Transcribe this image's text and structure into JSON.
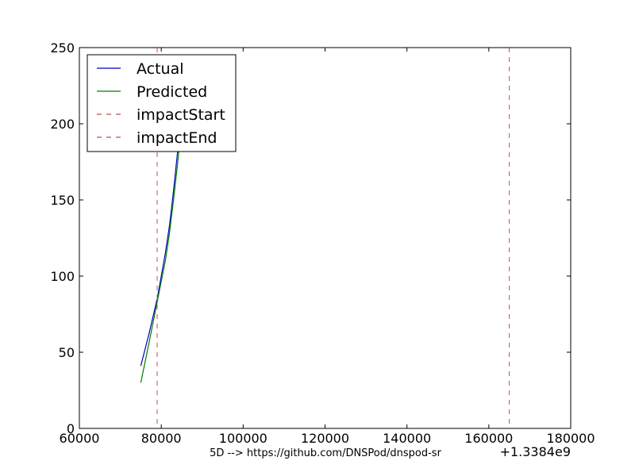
{
  "chart_data": {
    "type": "line",
    "title": "",
    "xlabel": "5D --> https://github.com/DNSPod/dnspod-sr",
    "ylabel": "",
    "x_offset_label": "+1.3384e9",
    "xlim": [
      60000,
      180000
    ],
    "ylim": [
      0,
      250
    ],
    "xticks": [
      {
        "value": 60000,
        "label": "60000"
      },
      {
        "value": 80000,
        "label": "80000"
      },
      {
        "value": 100000,
        "label": "100000"
      },
      {
        "value": 120000,
        "label": "120000"
      },
      {
        "value": 140000,
        "label": "140000"
      },
      {
        "value": 160000,
        "label": "160000"
      },
      {
        "value": 180000,
        "label": "180000"
      }
    ],
    "yticks": [
      {
        "value": 0,
        "label": "0"
      },
      {
        "value": 50,
        "label": "50"
      },
      {
        "value": 100,
        "label": "100"
      },
      {
        "value": 150,
        "label": "150"
      },
      {
        "value": 200,
        "label": "200"
      },
      {
        "value": 250,
        "label": "250"
      }
    ],
    "grid": false,
    "legend_position": "top-left",
    "series": [
      {
        "name": "Actual",
        "color": "#0000bf",
        "style": "solid",
        "x": [
          75000,
          77000,
          79000,
          81000,
          82000,
          83000,
          84000,
          85000
        ],
        "y": [
          41,
          62,
          85,
          115,
          133,
          156,
          182,
          200
        ]
      },
      {
        "name": "Predicted",
        "color": "#007f00",
        "style": "solid",
        "x": [
          75000,
          77000,
          79000,
          81000,
          82000,
          83000,
          84000,
          85000
        ],
        "y": [
          30,
          56,
          83,
          110,
          128,
          150,
          174,
          200
        ]
      },
      {
        "name": "impactStart",
        "color": "#c44e52",
        "style": "dashed",
        "vline": 79000
      },
      {
        "name": "impactEnd",
        "color": "#c44e52",
        "style": "dashed",
        "vline": 165000
      }
    ]
  }
}
